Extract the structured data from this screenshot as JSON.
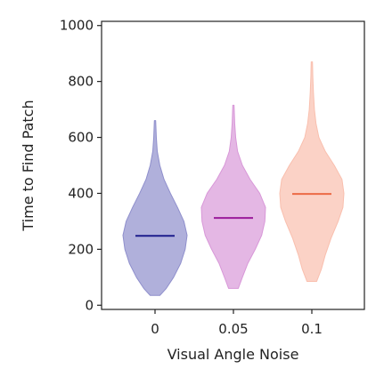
{
  "chart_data": {
    "type": "violin",
    "xlabel": "Visual Angle Noise",
    "ylabel": "Time to Find Patch",
    "ylim": [
      -15,
      1015
    ],
    "yticks": [
      0,
      200,
      400,
      600,
      800,
      1000
    ],
    "grid": false,
    "categories": [
      "0",
      "0.05",
      "0.1"
    ],
    "series": [
      {
        "category": "0",
        "color": "#8f8fcc",
        "median_color": "#1c1c8c",
        "min": 35,
        "max": 660,
        "median": 248,
        "profile": [
          [
            35,
            0.15
          ],
          [
            60,
            0.35
          ],
          [
            100,
            0.58
          ],
          [
            150,
            0.8
          ],
          [
            200,
            0.94
          ],
          [
            250,
            1.0
          ],
          [
            300,
            0.9
          ],
          [
            350,
            0.7
          ],
          [
            400,
            0.48
          ],
          [
            450,
            0.28
          ],
          [
            500,
            0.15
          ],
          [
            550,
            0.07
          ],
          [
            600,
            0.04
          ],
          [
            660,
            0.02
          ]
        ]
      },
      {
        "category": "0.05",
        "color": "#d898d8",
        "median_color": "#9a1a9a",
        "min": 60,
        "max": 715,
        "median": 312,
        "profile": [
          [
            60,
            0.15
          ],
          [
            100,
            0.28
          ],
          [
            150,
            0.45
          ],
          [
            200,
            0.68
          ],
          [
            250,
            0.88
          ],
          [
            300,
            0.98
          ],
          [
            350,
            1.0
          ],
          [
            400,
            0.82
          ],
          [
            450,
            0.52
          ],
          [
            500,
            0.28
          ],
          [
            550,
            0.13
          ],
          [
            600,
            0.07
          ],
          [
            650,
            0.04
          ],
          [
            715,
            0.02
          ]
        ]
      },
      {
        "category": "0.1",
        "color": "#f9bfae",
        "median_color": "#ec6a45",
        "min": 85,
        "max": 870,
        "median": 398,
        "profile": [
          [
            85,
            0.15
          ],
          [
            130,
            0.3
          ],
          [
            180,
            0.42
          ],
          [
            240,
            0.6
          ],
          [
            300,
            0.82
          ],
          [
            350,
            0.97
          ],
          [
            400,
            1.0
          ],
          [
            450,
            0.94
          ],
          [
            500,
            0.7
          ],
          [
            550,
            0.42
          ],
          [
            600,
            0.22
          ],
          [
            650,
            0.13
          ],
          [
            700,
            0.08
          ],
          [
            760,
            0.05
          ],
          [
            820,
            0.03
          ],
          [
            870,
            0.02
          ]
        ]
      }
    ]
  }
}
